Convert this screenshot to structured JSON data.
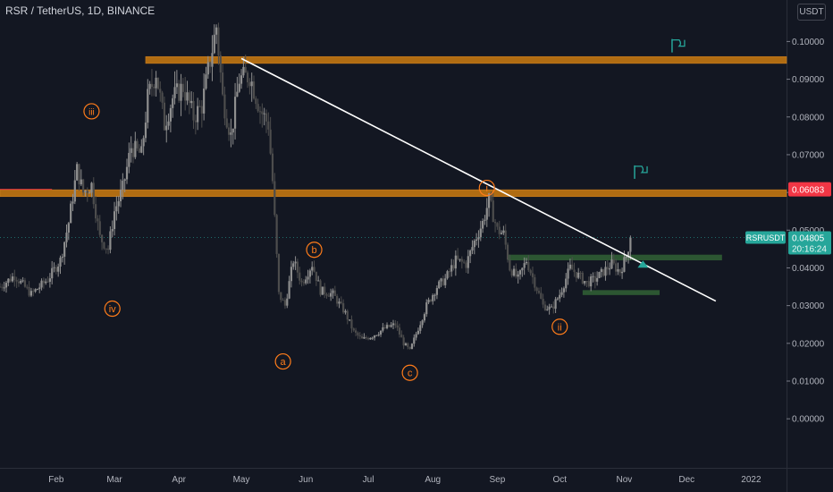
{
  "title": "RSR / TetherUS, 1D, BINANCE",
  "currency_button": "USDT",
  "colors": {
    "background": "#131722",
    "up": "#8f8f8f",
    "down": "#4d4d4d",
    "accent": "#ff7c1a",
    "zone": "#c27611",
    "support": "#2d5a34",
    "trendline": "#ffffff",
    "price_label": "#26a69a",
    "highlight_label": "#f23645",
    "text": "#d1d4dc",
    "flag": "#26a69a"
  },
  "price_tag": {
    "symbol": "RSRUSDT",
    "value": "0.04805",
    "countdown": "20:16:24"
  },
  "highlight_price": "0.06083",
  "chart_data": {
    "type": "candlestick",
    "symbol": "RSRUSDT",
    "interval": "1D",
    "exchange": "BINANCE",
    "y_ticks": [
      "0.10000",
      "0.09000",
      "0.08000",
      "0.07000",
      "0.06000",
      "0.05000",
      "0.04000",
      "0.03000",
      "0.02000",
      "0.01000",
      "0.00000"
    ],
    "x_ticks": [
      "Feb",
      "Mar",
      "Apr",
      "May",
      "Jun",
      "Jul",
      "Aug",
      "Sep",
      "Oct",
      "Nov",
      "Dec",
      "2022"
    ],
    "x_range": [
      "2021-01-05",
      "2022-01-18"
    ],
    "y_range": [
      -0.013,
      0.111
    ],
    "last_price": 0.04805,
    "close_path": [
      [
        "2021-01-05",
        0.035
      ],
      [
        "2021-01-12",
        0.038
      ],
      [
        "2021-01-20",
        0.033
      ],
      [
        "2021-01-28",
        0.037
      ],
      [
        "2021-02-03",
        0.042
      ],
      [
        "2021-02-07",
        0.052
      ],
      [
        "2021-02-11",
        0.066
      ],
      [
        "2021-02-14",
        0.06
      ],
      [
        "2021-02-18",
        0.062
      ],
      [
        "2021-02-22",
        0.048
      ],
      [
        "2021-02-26",
        0.045
      ],
      [
        "2021-03-01",
        0.055
      ],
      [
        "2021-03-05",
        0.061
      ],
      [
        "2021-03-09",
        0.072
      ],
      [
        "2021-03-14",
        0.07
      ],
      [
        "2021-03-17",
        0.085
      ],
      [
        "2021-03-21",
        0.092
      ],
      [
        "2021-03-25",
        0.078
      ],
      [
        "2021-03-29",
        0.085
      ],
      [
        "2021-04-03",
        0.088
      ],
      [
        "2021-04-08",
        0.08
      ],
      [
        "2021-04-12",
        0.083
      ],
      [
        "2021-04-16",
        0.095
      ],
      [
        "2021-04-19",
        0.104
      ],
      [
        "2021-04-22",
        0.085
      ],
      [
        "2021-04-26",
        0.075
      ],
      [
        "2021-04-30",
        0.09
      ],
      [
        "2021-05-05",
        0.091
      ],
      [
        "2021-05-10",
        0.082
      ],
      [
        "2021-05-14",
        0.078
      ],
      [
        "2021-05-16",
        0.063
      ],
      [
        "2021-05-19",
        0.033
      ],
      [
        "2021-05-22",
        0.03
      ],
      [
        "2021-05-26",
        0.042
      ],
      [
        "2021-05-30",
        0.036
      ],
      [
        "2021-06-04",
        0.041
      ],
      [
        "2021-06-08",
        0.034
      ],
      [
        "2021-06-14",
        0.033
      ],
      [
        "2021-06-20",
        0.028
      ],
      [
        "2021-06-24",
        0.023
      ],
      [
        "2021-06-28",
        0.021
      ],
      [
        "2021-07-03",
        0.022
      ],
      [
        "2021-07-09",
        0.024
      ],
      [
        "2021-07-14",
        0.025
      ],
      [
        "2021-07-18",
        0.02
      ],
      [
        "2021-07-21",
        0.018
      ],
      [
        "2021-07-25",
        0.024
      ],
      [
        "2021-07-29",
        0.03
      ],
      [
        "2021-08-03",
        0.035
      ],
      [
        "2021-08-07",
        0.037
      ],
      [
        "2021-08-12",
        0.042
      ],
      [
        "2021-08-17",
        0.041
      ],
      [
        "2021-08-21",
        0.047
      ],
      [
        "2021-08-25",
        0.052
      ],
      [
        "2021-08-28",
        0.058
      ],
      [
        "2021-09-01",
        0.05
      ],
      [
        "2021-09-04",
        0.049
      ],
      [
        "2021-09-07",
        0.04
      ],
      [
        "2021-09-11",
        0.037
      ],
      [
        "2021-09-15",
        0.042
      ],
      [
        "2021-09-19",
        0.036
      ],
      [
        "2021-09-23",
        0.03
      ],
      [
        "2021-09-27",
        0.029
      ],
      [
        "2021-10-01",
        0.033
      ],
      [
        "2021-10-06",
        0.04
      ],
      [
        "2021-10-10",
        0.038
      ],
      [
        "2021-10-14",
        0.036
      ],
      [
        "2021-10-18",
        0.037
      ],
      [
        "2021-10-22",
        0.039
      ],
      [
        "2021-10-26",
        0.041
      ],
      [
        "2021-10-30",
        0.039
      ],
      [
        "2021-11-02",
        0.043
      ],
      [
        "2021-11-04",
        0.048
      ]
    ],
    "zones": [
      {
        "from": "2021-03-16",
        "to": "2022-01-18",
        "low": 0.0942,
        "high": 0.096,
        "color": "zone"
      },
      {
        "from": "2021-01-05",
        "to": "2022-01-18",
        "low": 0.0589,
        "high": 0.0607,
        "color": "zone"
      },
      {
        "from": "2021-09-06",
        "to": "2021-12-18",
        "low": 0.042,
        "high": 0.0435,
        "color": "support"
      },
      {
        "from": "2021-10-12",
        "to": "2021-11-18",
        "low": 0.0328,
        "high": 0.0341,
        "color": "support"
      }
    ],
    "horizontal_lines": [
      {
        "y": 0.06083,
        "color": "highlight_label",
        "to": "2021-01-30"
      },
      {
        "y": 0.04805,
        "color": "price_label",
        "style": "dotted"
      }
    ],
    "trendline": [
      [
        "2021-05-01",
        0.0955
      ],
      [
        "2021-12-15",
        0.0312
      ]
    ],
    "wave_labels": [
      {
        "label": "iii",
        "x": "2021-02-18",
        "y": 0.0815
      },
      {
        "label": "iv",
        "x": "2021-02-28",
        "y": 0.0292
      },
      {
        "label": "a",
        "x": "2021-05-21",
        "y": 0.0152
      },
      {
        "label": "b",
        "x": "2021-06-05",
        "y": 0.0448
      },
      {
        "label": "c",
        "x": "2021-07-21",
        "y": 0.0122
      },
      {
        "label": "i",
        "x": "2021-08-27",
        "y": 0.0612
      },
      {
        "label": "ii",
        "x": "2021-10-01",
        "y": 0.0244
      }
    ],
    "flags": [
      {
        "x": "2021-11-27",
        "y": 0.099
      },
      {
        "x": "2021-11-09",
        "y": 0.0655
      }
    ],
    "arrow": {
      "x": "2021-11-10",
      "y": 0.041
    }
  }
}
